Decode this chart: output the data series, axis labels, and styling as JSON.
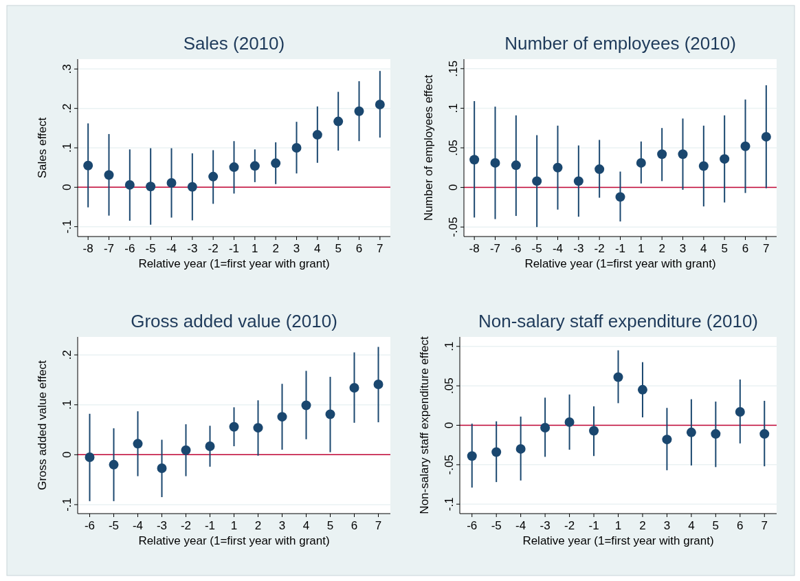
{
  "chart_data": [
    {
      "type": "scatter",
      "title": "Sales (2010)",
      "xlabel": "Relative year (1=first year with grant)",
      "ylabel": "Sales effect",
      "categories": [
        "-8",
        "-7",
        "-6",
        "-5",
        "-4",
        "-3",
        "-2",
        "-1",
        "1",
        "2",
        "3",
        "4",
        "5",
        "6",
        "7"
      ],
      "color": "#1a476f",
      "marker": "circle",
      "grid": "y",
      "ylim": [
        -0.125,
        0.325
      ],
      "yticks": [
        {
          "value": -0.1,
          "label": "-.1"
        },
        {
          "value": 0,
          "label": "0"
        },
        {
          "value": 0.1,
          "label": ".1"
        },
        {
          "value": 0.2,
          "label": ".2"
        },
        {
          "value": 0.3,
          "label": ".3"
        }
      ],
      "values": [
        0.055,
        0.031,
        0.006,
        0.002,
        0.011,
        0.001,
        0.027,
        0.051,
        0.054,
        0.061,
        0.1,
        0.133,
        0.167,
        0.193,
        0.21
      ],
      "errors": [
        [
          -0.051,
          0.162
        ],
        [
          -0.072,
          0.135
        ],
        [
          -0.085,
          0.096
        ],
        [
          -0.095,
          0.099
        ],
        [
          -0.077,
          0.099
        ],
        [
          -0.084,
          0.086
        ],
        [
          -0.042,
          0.094
        ],
        [
          -0.016,
          0.117
        ],
        [
          0.013,
          0.096
        ],
        [
          0.008,
          0.114
        ],
        [
          0.035,
          0.166
        ],
        [
          0.062,
          0.205
        ],
        [
          0.093,
          0.242
        ],
        [
          0.117,
          0.269
        ],
        [
          0.126,
          0.295
        ]
      ],
      "ref_lines": [
        {
          "axis": "y",
          "value": 0,
          "color": "#c10534"
        }
      ]
    },
    {
      "type": "scatter",
      "title": "Number of employees (2010)",
      "xlabel": "Relative year (1=first year with grant)",
      "ylabel": "Number of employees effect",
      "categories": [
        "-8",
        "-7",
        "-6",
        "-5",
        "-4",
        "-3",
        "-2",
        "-1",
        "1",
        "2",
        "3",
        "4",
        "5",
        "6",
        "7"
      ],
      "color": "#1a476f",
      "marker": "circle",
      "grid": "y",
      "ylim": [
        -0.062,
        0.162
      ],
      "yticks": [
        {
          "value": -0.05,
          "label": "-.05"
        },
        {
          "value": 0,
          "label": "0"
        },
        {
          "value": 0.05,
          "label": ".05"
        },
        {
          "value": 0.1,
          "label": ".1"
        },
        {
          "value": 0.15,
          "label": ".15"
        }
      ],
      "values": [
        0.035,
        0.031,
        0.028,
        0.008,
        0.025,
        0.008,
        0.023,
        -0.012,
        0.031,
        0.042,
        0.042,
        0.027,
        0.036,
        0.052,
        0.064
      ],
      "errors": [
        [
          -0.038,
          0.109
        ],
        [
          -0.04,
          0.102
        ],
        [
          -0.036,
          0.091
        ],
        [
          -0.05,
          0.066
        ],
        [
          -0.028,
          0.078
        ],
        [
          -0.037,
          0.053
        ],
        [
          -0.013,
          0.06
        ],
        [
          -0.043,
          0.02
        ],
        [
          0.005,
          0.058
        ],
        [
          0.008,
          0.075
        ],
        [
          -0.003,
          0.087
        ],
        [
          -0.024,
          0.078
        ],
        [
          -0.019,
          0.091
        ],
        [
          -0.007,
          0.111
        ],
        [
          -0.001,
          0.129
        ]
      ],
      "ref_lines": [
        {
          "axis": "y",
          "value": 0,
          "color": "#c10534"
        }
      ]
    },
    {
      "type": "scatter",
      "title": "Gross added value (2010)",
      "xlabel": "Relative year (1=first year with grant)",
      "ylabel": "Gross added value effect",
      "categories": [
        "-6",
        "-5",
        "-4",
        "-3",
        "-2",
        "-1",
        "1",
        "2",
        "3",
        "4",
        "5",
        "6",
        "7"
      ],
      "color": "#1a476f",
      "marker": "circle",
      "grid": "y",
      "ylim": [
        -0.118,
        0.236
      ],
      "yticks": [
        {
          "value": -0.1,
          "label": "-.1"
        },
        {
          "value": 0,
          "label": "0"
        },
        {
          "value": 0.1,
          "label": ".1"
        },
        {
          "value": 0.2,
          "label": ".2"
        }
      ],
      "values": [
        -0.005,
        -0.02,
        0.022,
        -0.027,
        0.009,
        0.017,
        0.056,
        0.054,
        0.076,
        0.099,
        0.081,
        0.134,
        0.141
      ],
      "errors": [
        [
          -0.093,
          0.082
        ],
        [
          -0.093,
          0.053
        ],
        [
          -0.043,
          0.087
        ],
        [
          -0.085,
          0.03
        ],
        [
          -0.043,
          0.061
        ],
        [
          -0.024,
          0.058
        ],
        [
          0.017,
          0.095
        ],
        [
          -0.002,
          0.109
        ],
        [
          0.01,
          0.142
        ],
        [
          0.031,
          0.168
        ],
        [
          0.005,
          0.156
        ],
        [
          0.064,
          0.205
        ],
        [
          0.065,
          0.216
        ]
      ],
      "ref_lines": [
        {
          "axis": "y",
          "value": 0,
          "color": "#c10534"
        }
      ]
    },
    {
      "type": "scatter",
      "title": "Non-salary staff expenditure (2010)",
      "xlabel": "Relative year (1=first year with grant)",
      "ylabel": "Non-salary staff expenditure effect",
      "categories": [
        "-6",
        "-5",
        "-4",
        "-3",
        "-2",
        "-1",
        "1",
        "2",
        "3",
        "4",
        "5",
        "6",
        "7"
      ],
      "color": "#1a476f",
      "marker": "circle",
      "grid": "y",
      "ylim": [
        -0.112,
        0.112
      ],
      "yticks": [
        {
          "value": -0.1,
          "label": "-.1"
        },
        {
          "value": -0.05,
          "label": "-.05"
        },
        {
          "value": 0,
          "label": "0"
        },
        {
          "value": 0.05,
          "label": ".05"
        },
        {
          "value": 0.1,
          "label": ".1"
        }
      ],
      "values": [
        -0.039,
        -0.034,
        -0.03,
        -0.003,
        0.004,
        -0.007,
        0.061,
        0.045,
        -0.018,
        -0.009,
        -0.011,
        0.017,
        -0.011
      ],
      "errors": [
        [
          -0.079,
          0.002
        ],
        [
          -0.072,
          0.005
        ],
        [
          -0.07,
          0.011
        ],
        [
          -0.04,
          0.035
        ],
        [
          -0.031,
          0.039
        ],
        [
          -0.039,
          0.024
        ],
        [
          0.028,
          0.095
        ],
        [
          0.01,
          0.08
        ],
        [
          -0.057,
          0.022
        ],
        [
          -0.051,
          0.033
        ],
        [
          -0.053,
          0.03
        ],
        [
          -0.023,
          0.058
        ],
        [
          -0.052,
          0.031
        ]
      ],
      "ref_lines": [
        {
          "axis": "y",
          "value": 0,
          "color": "#c10534"
        }
      ]
    }
  ]
}
